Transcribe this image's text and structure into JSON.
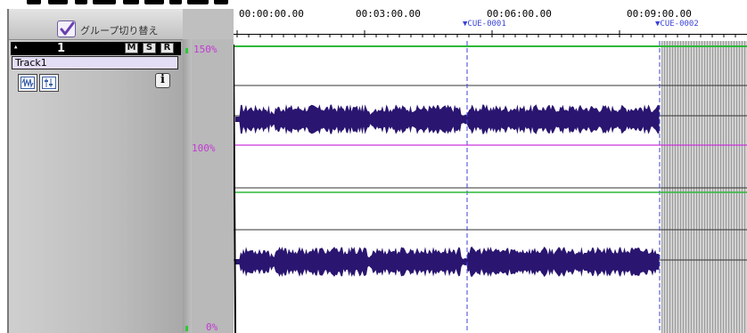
{
  "group": {
    "label": "グループ切り替え",
    "checked": true
  },
  "track": {
    "number": "1",
    "buttons": [
      "M",
      "S",
      "R"
    ],
    "name": "Track1",
    "info_label": "i"
  },
  "scale": {
    "top": "150%",
    "mid": "100%",
    "bottom": "0%"
  },
  "ruler": {
    "times": [
      "00:00:00.00",
      "00:03:00.00",
      "00:06:00.00",
      "00:09:00.00"
    ]
  },
  "cues": [
    {
      "label": "CUE-0001"
    },
    {
      "label": "CUE-0002"
    }
  ],
  "colors": {
    "waveform": "#2a1570",
    "cue": "#3b43d8",
    "volume_line": "#cc33dd",
    "pan_line": "#2db83a"
  }
}
